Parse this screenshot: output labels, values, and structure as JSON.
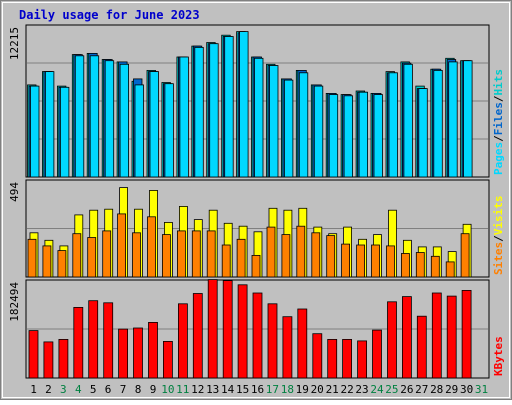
{
  "title": "Daily usage for June 2023",
  "colors": {
    "frame_bg": "#c0c0c0",
    "plot_bg": "#c0c0c0",
    "title_text": "#0000cc",
    "hits": "#00cccc",
    "files": "#0066cc",
    "pages": "#00d8ff",
    "visits": "#ffff00",
    "sites": "#ff8000",
    "kbytes": "#ff0000",
    "day_weekday": "#000000",
    "day_weekend": "#008040",
    "tick_text": "#000000"
  },
  "chart_data": [
    {
      "type": "bar",
      "name": "hits-files-pages",
      "ymax_label": "12215",
      "ylim": [
        0,
        12215
      ],
      "legend": [
        {
          "label": "Pages",
          "color": "#00d8ff"
        },
        {
          "label": "Files",
          "color": "#0066cc"
        },
        {
          "label": "Hits",
          "color": "#00cccc"
        }
      ],
      "categories": [
        "1",
        "2",
        "3",
        "4",
        "5",
        "6",
        "7",
        "8",
        "9",
        "10",
        "11",
        "12",
        "13",
        "14",
        "15",
        "16",
        "17",
        "18",
        "19",
        "20",
        "21",
        "22",
        "23",
        "24",
        "25",
        "26",
        "27",
        "28",
        "29",
        "30",
        "31"
      ],
      "series": [
        {
          "name": "Hits",
          "values": [
            7600,
            8700,
            7500,
            10100,
            10200,
            9700,
            9500,
            7900,
            8800,
            7800,
            9900,
            10800,
            11100,
            11700,
            12000,
            9900,
            9300,
            8100,
            8800,
            7600,
            6900,
            6800,
            7100,
            6900,
            8700,
            9500,
            7500,
            8900,
            9800,
            9600,
            0
          ]
        },
        {
          "name": "Files",
          "values": [
            7500,
            8700,
            7400,
            10100,
            10200,
            9700,
            9500,
            8100,
            8700,
            7700,
            9900,
            10800,
            11000,
            11600,
            11900,
            9900,
            9200,
            8100,
            8800,
            7600,
            6900,
            6800,
            7000,
            6900,
            8600,
            9400,
            7300,
            8900,
            9700,
            9600,
            0
          ]
        },
        {
          "name": "Pages",
          "values": [
            7500,
            8700,
            7400,
            10000,
            10000,
            9600,
            9300,
            7600,
            8700,
            7700,
            9900,
            10700,
            11000,
            11600,
            12000,
            9800,
            9200,
            8000,
            8600,
            7500,
            6800,
            6700,
            7000,
            6800,
            8600,
            9300,
            7300,
            8800,
            9500,
            9600,
            0
          ]
        }
      ]
    },
    {
      "type": "bar",
      "name": "visits-sites",
      "ymax_label": "494",
      "ylim": [
        0,
        494
      ],
      "legend": [
        {
          "label": "Sites",
          "color": "#ff8000"
        },
        {
          "label": "Visits",
          "color": "#ffff00"
        }
      ],
      "categories": [
        "1",
        "2",
        "3",
        "4",
        "5",
        "6",
        "7",
        "8",
        "9",
        "10",
        "11",
        "12",
        "13",
        "14",
        "15",
        "16",
        "17",
        "18",
        "19",
        "20",
        "21",
        "22",
        "23",
        "24",
        "25",
        "26",
        "27",
        "28",
        "29",
        "30",
        "31"
      ],
      "series": [
        {
          "name": "Visits",
          "values": [
            235,
            195,
            165,
            330,
            355,
            360,
            475,
            360,
            460,
            290,
            375,
            305,
            355,
            285,
            270,
            240,
            365,
            355,
            365,
            265,
            230,
            265,
            200,
            225,
            355,
            195,
            160,
            160,
            135,
            280,
            0
          ]
        },
        {
          "name": "Sites",
          "values": [
            200,
            165,
            140,
            230,
            210,
            245,
            335,
            235,
            320,
            225,
            245,
            245,
            245,
            170,
            200,
            115,
            265,
            225,
            270,
            235,
            220,
            175,
            170,
            170,
            165,
            125,
            130,
            110,
            80,
            230,
            0
          ]
        }
      ]
    },
    {
      "type": "bar",
      "name": "kbytes",
      "ymax_label": "182494",
      "ylim": [
        0,
        182494
      ],
      "legend": [
        {
          "label": "KBytes",
          "color": "#ff0000"
        }
      ],
      "categories": [
        "1",
        "2",
        "3",
        "4",
        "5",
        "6",
        "7",
        "8",
        "9",
        "10",
        "11",
        "12",
        "13",
        "14",
        "15",
        "16",
        "17",
        "18",
        "19",
        "20",
        "21",
        "22",
        "23",
        "24",
        "25",
        "26",
        "27",
        "28",
        "29",
        "30",
        "31"
      ],
      "series": [
        {
          "name": "KBytes",
          "values": [
            92000,
            70000,
            75000,
            137000,
            150000,
            146000,
            95000,
            97000,
            108000,
            71000,
            144000,
            164000,
            191000,
            189000,
            181000,
            165000,
            144000,
            119000,
            134000,
            86000,
            75000,
            75000,
            72000,
            93000,
            148000,
            158000,
            120000,
            165000,
            159000,
            170000,
            0
          ]
        }
      ]
    }
  ],
  "days": [
    {
      "label": "1",
      "weekend": false
    },
    {
      "label": "2",
      "weekend": false
    },
    {
      "label": "3",
      "weekend": true
    },
    {
      "label": "4",
      "weekend": true
    },
    {
      "label": "5",
      "weekend": false
    },
    {
      "label": "6",
      "weekend": false
    },
    {
      "label": "7",
      "weekend": false
    },
    {
      "label": "8",
      "weekend": false
    },
    {
      "label": "9",
      "weekend": false
    },
    {
      "label": "10",
      "weekend": true
    },
    {
      "label": "11",
      "weekend": true
    },
    {
      "label": "12",
      "weekend": false
    },
    {
      "label": "13",
      "weekend": false
    },
    {
      "label": "14",
      "weekend": false
    },
    {
      "label": "15",
      "weekend": false
    },
    {
      "label": "16",
      "weekend": false
    },
    {
      "label": "17",
      "weekend": true
    },
    {
      "label": "18",
      "weekend": true
    },
    {
      "label": "19",
      "weekend": false
    },
    {
      "label": "20",
      "weekend": false
    },
    {
      "label": "21",
      "weekend": false
    },
    {
      "label": "22",
      "weekend": false
    },
    {
      "label": "23",
      "weekend": false
    },
    {
      "label": "24",
      "weekend": true
    },
    {
      "label": "25",
      "weekend": true
    },
    {
      "label": "26",
      "weekend": false
    },
    {
      "label": "27",
      "weekend": false
    },
    {
      "label": "28",
      "weekend": false
    },
    {
      "label": "29",
      "weekend": false
    },
    {
      "label": "30",
      "weekend": false
    },
    {
      "label": "31",
      "weekend": true
    }
  ]
}
